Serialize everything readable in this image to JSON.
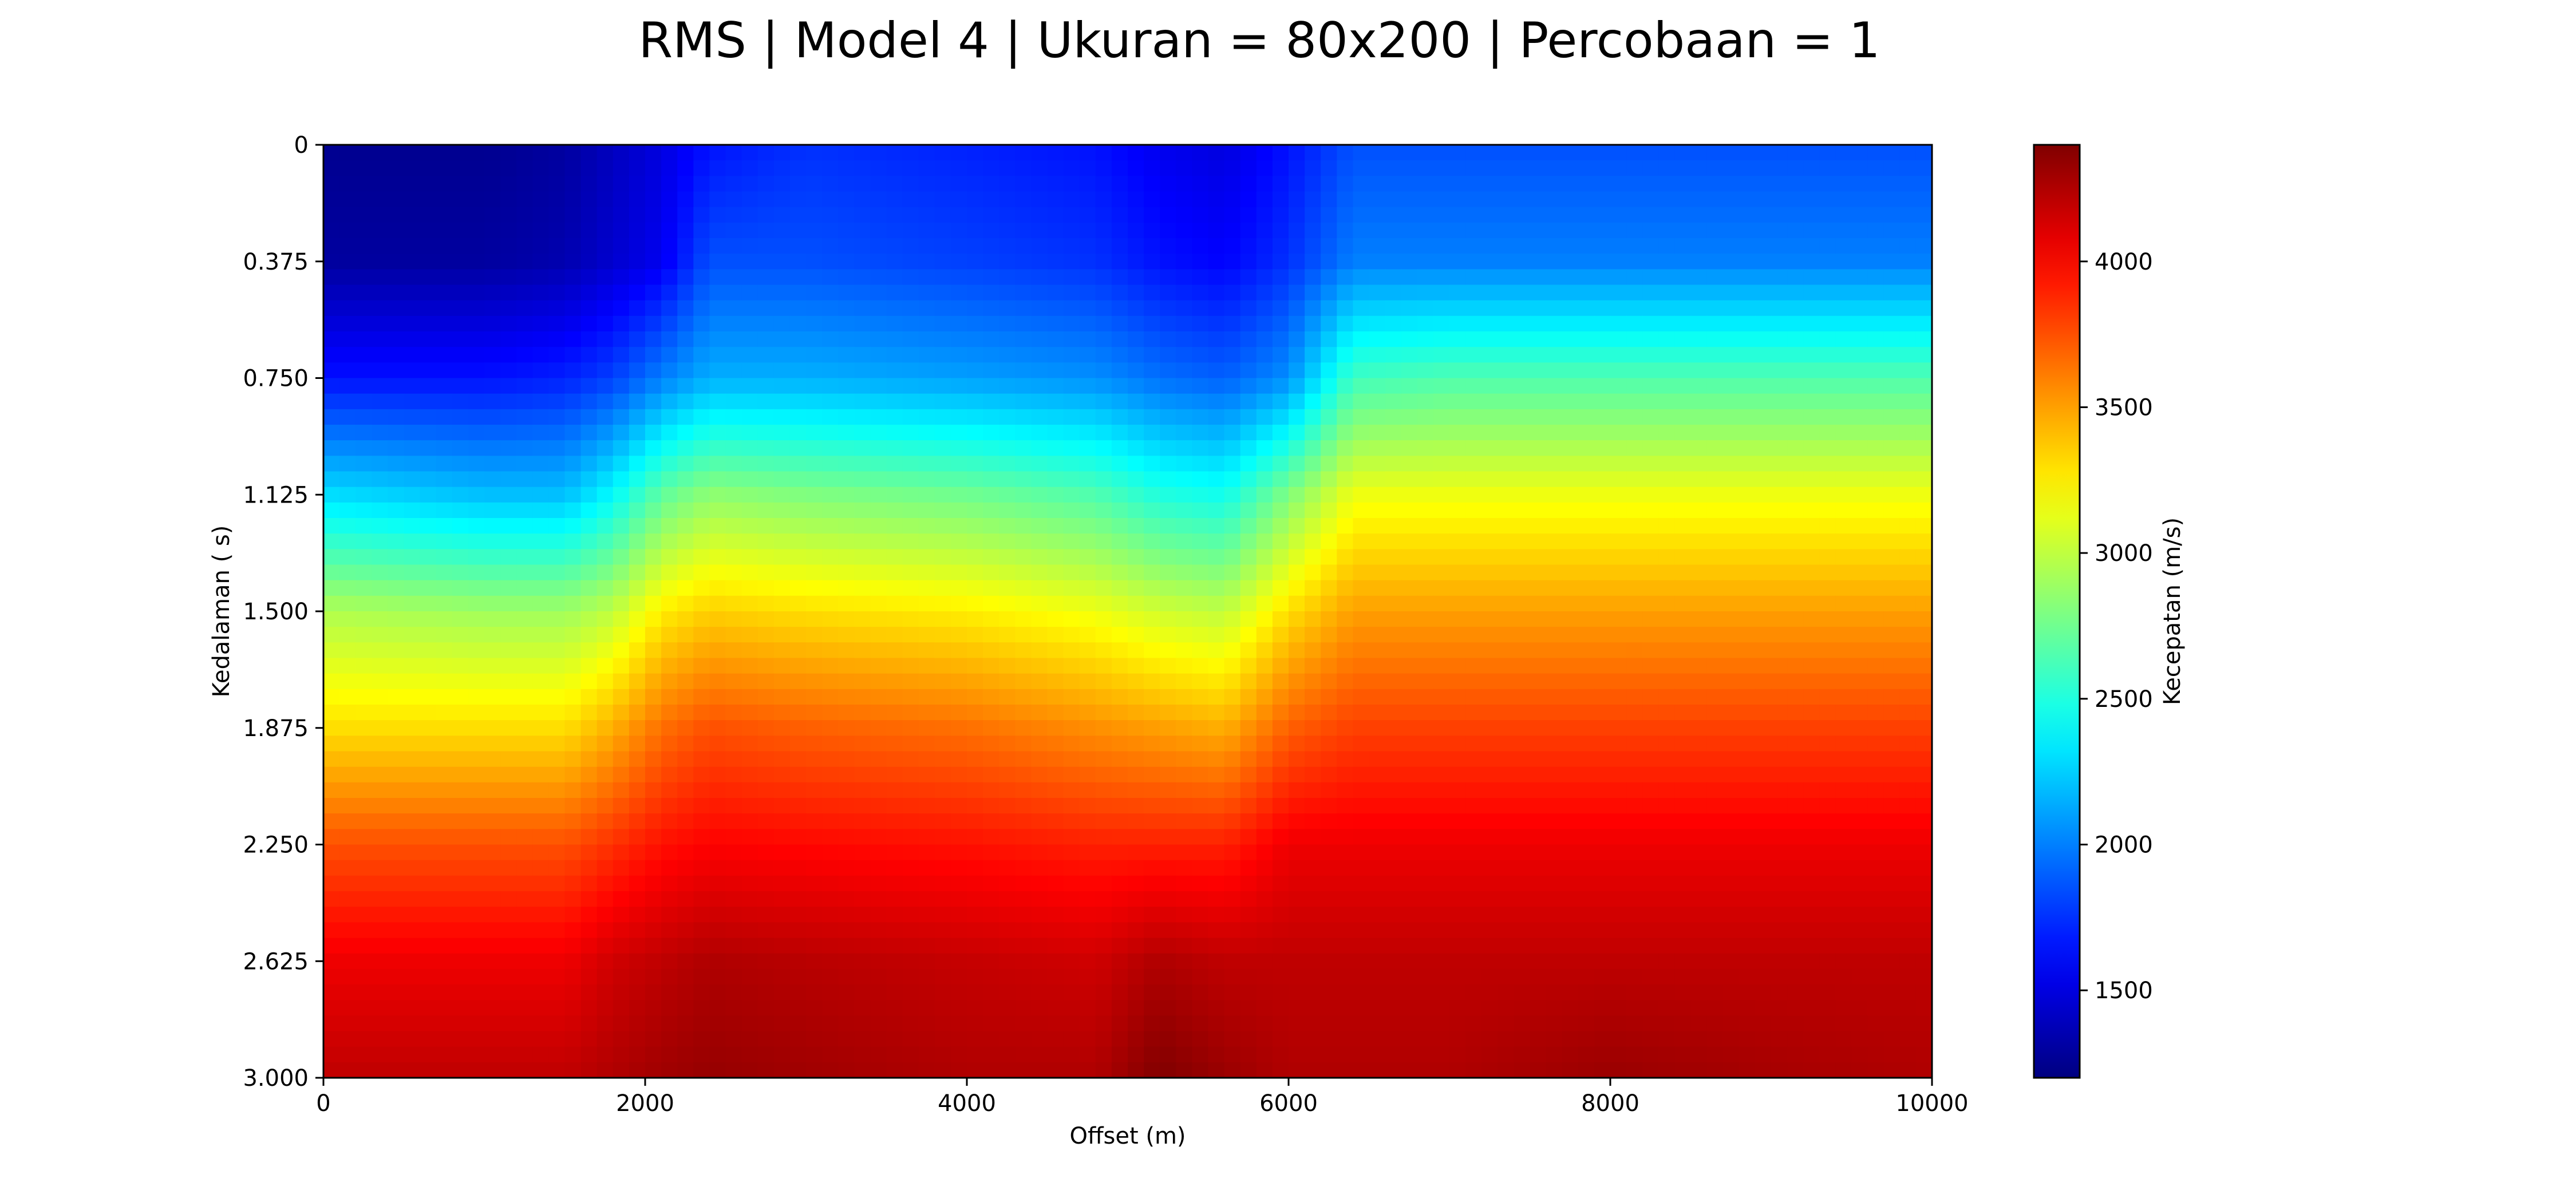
{
  "chart_data": {
    "type": "heatmap",
    "title": "RMS | Model 4 | Ukuran = 80x200 | Percobaan = 1",
    "xlabel": "Offset (m)",
    "ylabel": "Kedalaman ( s)",
    "colorbar_label": "Kecepatan (m/s)",
    "colormap": "jet",
    "grid": false,
    "xlim": [
      0,
      10000
    ],
    "ylim": [
      0,
      3.0
    ],
    "y_inverted": true,
    "clim": [
      1200,
      4400
    ],
    "x_ticks": [
      0,
      2000,
      4000,
      6000,
      8000,
      10000
    ],
    "x_tick_labels": [
      "0",
      "2000",
      "4000",
      "6000",
      "8000",
      "10000"
    ],
    "y_ticks": [
      0,
      0.375,
      0.75,
      1.125,
      1.5,
      1.875,
      2.25,
      2.625,
      3.0
    ],
    "y_tick_labels": [
      "0",
      "0.375",
      "0.750",
      "1.125",
      "1.500",
      "1.875",
      "2.250",
      "2.625",
      "3.000"
    ],
    "colorbar_ticks": [
      1500,
      2000,
      2500,
      3000,
      3500,
      4000
    ],
    "colorbar_tick_labels": [
      "1500",
      "2000",
      "2500",
      "3000",
      "3500",
      "4000"
    ],
    "x": [
      0,
      1000,
      1500,
      1800,
      2100,
      2400,
      3000,
      4000,
      4800,
      5200,
      5600,
      6000,
      6400,
      7000,
      8000,
      9000,
      10000
    ],
    "y": [
      0,
      0.375,
      0.75,
      1.125,
      1.5,
      1.875,
      2.25,
      2.625,
      3.0
    ],
    "values": [
      [
        1250,
        1250,
        1300,
        1400,
        1500,
        1650,
        1750,
        1700,
        1650,
        1550,
        1500,
        1650,
        1850,
        1850,
        1850,
        1850,
        1850
      ],
      [
        1300,
        1300,
        1350,
        1450,
        1550,
        1850,
        1850,
        1800,
        1750,
        1650,
        1600,
        1750,
        2000,
        2000,
        2000,
        2000,
        2000
      ],
      [
        1650,
        1650,
        1700,
        1800,
        2000,
        2150,
        2150,
        2100,
        2050,
        1950,
        1900,
        2050,
        2600,
        2650,
        2650,
        2650,
        2650
      ],
      [
        2300,
        2200,
        2200,
        2400,
        2700,
        2850,
        2800,
        2750,
        2650,
        2500,
        2450,
        2800,
        3150,
        3150,
        3150,
        3150,
        3150
      ],
      [
        2950,
        2900,
        2900,
        3000,
        3250,
        3350,
        3300,
        3250,
        3150,
        3050,
        3000,
        3300,
        3500,
        3500,
        3500,
        3500,
        3500
      ],
      [
        3300,
        3300,
        3300,
        3450,
        3650,
        3750,
        3700,
        3650,
        3550,
        3500,
        3450,
        3700,
        3800,
        3800,
        3800,
        3800,
        3800
      ],
      [
        3750,
        3750,
        3750,
        3850,
        3950,
        4000,
        3980,
        3950,
        3900,
        3900,
        3900,
        4050,
        4050,
        4050,
        4050,
        4050,
        4050
      ],
      [
        4050,
        4050,
        4050,
        4150,
        4200,
        4250,
        4220,
        4180,
        4150,
        4250,
        4200,
        4200,
        4200,
        4200,
        4200,
        4200,
        4200
      ],
      [
        4200,
        4200,
        4200,
        4250,
        4300,
        4330,
        4300,
        4250,
        4250,
        4400,
        4320,
        4250,
        4250,
        4250,
        4320,
        4280,
        4250
      ]
    ]
  }
}
